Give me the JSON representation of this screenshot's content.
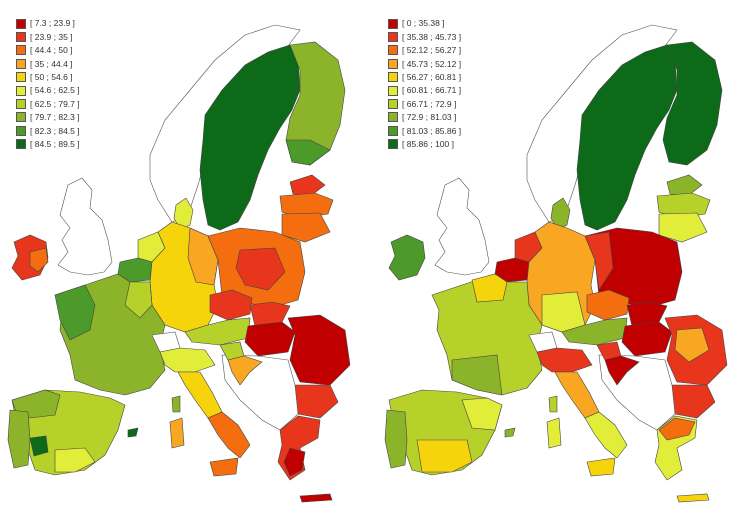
{
  "maps": [
    {
      "legend": [
        {
          "label": "[ 7.3 ; 23.9 ]",
          "color": "#c00000"
        },
        {
          "label": "[ 23.9 ; 35 ]",
          "color": "#e8361c"
        },
        {
          "label": "[ 44.4 ; 50 ]",
          "color": "#f46d0e"
        },
        {
          "label": "[ 35 ; 44.4 ]",
          "color": "#f9a623"
        },
        {
          "label": "[ 50 ; 54.6 ]",
          "color": "#f6d40c"
        },
        {
          "label": "[ 54.6 ; 62.5 ]",
          "color": "#e2ed3a"
        },
        {
          "label": "[ 62.5 ; 79.7 ]",
          "color": "#b5d12a"
        },
        {
          "label": "[ 79.7 ; 82.3 ]",
          "color": "#8cb42a"
        },
        {
          "label": "[ 82.3 ; 84.5 ]",
          "color": "#4c9a2a"
        },
        {
          "label": "[ 84.5 ; 89.5 ]",
          "color": "#0c6a18"
        }
      ]
    },
    {
      "legend": [
        {
          "label": "[ 0 ; 35.38 ]",
          "color": "#c00000"
        },
        {
          "label": "[ 35.38 ; 45.73 ]",
          "color": "#e8361c"
        },
        {
          "label": "[ 52.12 ; 56.27 ]",
          "color": "#f46d0e"
        },
        {
          "label": "[ 45.73 ; 52.12 ]",
          "color": "#f9a623"
        },
        {
          "label": "[ 56.27 ; 60.81 ]",
          "color": "#f6d40c"
        },
        {
          "label": "[ 60.81 ; 66.71 ]",
          "color": "#e2ed3a"
        },
        {
          "label": "[ 66.71 ; 72.9 ]",
          "color": "#b5d12a"
        },
        {
          "label": "[ 72.9 ; 81.03 ]",
          "color": "#8cb42a"
        },
        {
          "label": "[ 81.03 ; 85.86 ]",
          "color": "#4c9a2a"
        },
        {
          "label": "[ 85.86 ; 100 ]",
          "color": "#0c6a18"
        }
      ]
    }
  ]
}
